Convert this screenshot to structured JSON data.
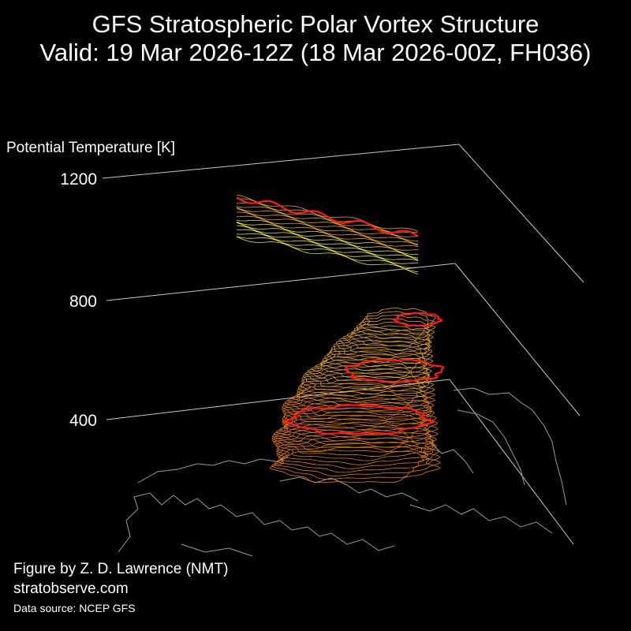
{
  "title_line1": "GFS Stratospheric Polar Vortex Structure",
  "title_line2": "Valid: 19 Mar 2026-12Z  (18 Mar 2026-00Z, FH036)",
  "credits": {
    "author": "Figure by Z. D. Lawrence (NMT)",
    "website": "stratobserve.com",
    "source": "Data source: NCEP GFS"
  },
  "colors": {
    "background": "#000000",
    "axis": "#c8c8c8",
    "coastline": "#9a9a9a",
    "highlight_contour": "#ff1a1a",
    "low_level_contour": "#e07a10",
    "mid_level_contour": "#e0a020",
    "high_level_contour": "#e8e030"
  },
  "chart_data": {
    "type": "3d-isosurface",
    "zlabel": "Potential Temperature [K]",
    "z_ticks": [
      400,
      800,
      1200
    ],
    "zlim": [
      0,
      1200
    ],
    "description_of_layers": [
      {
        "name": "lower vortex body",
        "theta_range": [
          400,
          800
        ]
      },
      {
        "name": "upper vortex fragment",
        "theta_range": [
          1000,
          1200
        ]
      }
    ],
    "highlighted_levels": [
      450,
      600,
      750,
      1100
    ],
    "grid": true
  }
}
